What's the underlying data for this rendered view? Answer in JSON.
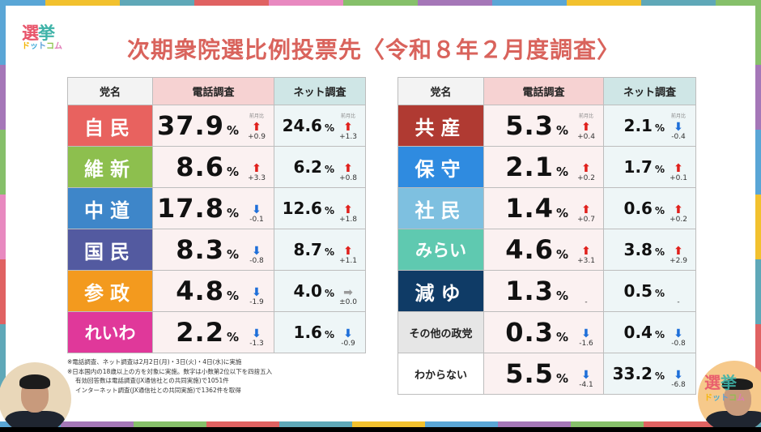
{
  "title": "次期衆院選比例投票先〈令和８年２月度調査〉",
  "logo": {
    "line1a": "選",
    "line1b": "挙",
    "line2": [
      "ド",
      "ッ",
      "ト",
      "コ",
      "ム"
    ]
  },
  "headers": {
    "party": "党名",
    "phone": "電話調査",
    "net": "ネット調査",
    "prev_label": "前月比"
  },
  "left_table": [
    {
      "party": "自民",
      "color": "#e8625f",
      "phone": "37.9",
      "phone_dir": "up",
      "phone_delta": "+0.9",
      "net": "24.6",
      "net_dir": "up",
      "net_delta": "+1.3",
      "show_prev": true
    },
    {
      "party": "維新",
      "color": "#8dbf4e",
      "phone": "8.6",
      "phone_dir": "up",
      "phone_delta": "+3.3",
      "net": "6.2",
      "net_dir": "up",
      "net_delta": "+0.8"
    },
    {
      "party": "中道",
      "color": "#3e86c9",
      "phone": "17.8",
      "phone_dir": "down",
      "phone_delta": "-0.1",
      "net": "12.6",
      "net_dir": "up",
      "net_delta": "+1.8"
    },
    {
      "party": "国民",
      "color": "#535aa0",
      "phone": "8.3",
      "phone_dir": "down",
      "phone_delta": "-0.8",
      "net": "8.7",
      "net_dir": "up",
      "net_delta": "+1.1"
    },
    {
      "party": "参政",
      "color": "#f39a1e",
      "phone": "4.8",
      "phone_dir": "down",
      "phone_delta": "-1.9",
      "net": "4.0",
      "net_dir": "flat",
      "net_delta": "±0.0"
    },
    {
      "party": "れいわ",
      "color": "#e0389a",
      "phone": "2.2",
      "phone_dir": "down",
      "phone_delta": "-1.3",
      "net": "1.6",
      "net_dir": "down",
      "net_delta": "-0.9"
    }
  ],
  "right_table": [
    {
      "party": "共産",
      "color": "#b03a32",
      "phone": "5.3",
      "phone_dir": "up",
      "phone_delta": "+0.4",
      "net": "2.1",
      "net_dir": "down",
      "net_delta": "-0.4",
      "show_prev": true
    },
    {
      "party": "保守",
      "color": "#2f8be0",
      "phone": "2.1",
      "phone_dir": "up",
      "phone_delta": "+0.2",
      "net": "1.7",
      "net_dir": "up",
      "net_delta": "+0.1"
    },
    {
      "party": "社民",
      "color": "#7ec0e0",
      "phone": "1.4",
      "phone_dir": "up",
      "phone_delta": "+0.7",
      "net": "0.6",
      "net_dir": "up",
      "net_delta": "+0.2"
    },
    {
      "party": "みらい",
      "color": "#5fc9b0",
      "phone": "4.6",
      "phone_dir": "up",
      "phone_delta": "+3.1",
      "net": "3.8",
      "net_dir": "up",
      "net_delta": "+2.9"
    },
    {
      "party": "減ゆ",
      "color": "#0f3b66",
      "phone": "1.3",
      "phone_dir": "none",
      "phone_delta": "-",
      "net": "0.5",
      "net_dir": "none",
      "net_delta": "-"
    },
    {
      "party": "その他の政党",
      "color": "#e6e6e6",
      "phone": "0.3",
      "phone_dir": "down",
      "phone_delta": "-1.6",
      "net": "0.4",
      "net_dir": "down",
      "net_delta": "-0.8",
      "dark_text": true
    },
    {
      "party": "わからない",
      "color": "#ffffff",
      "phone": "5.5",
      "phone_dir": "down",
      "phone_delta": "-4.1",
      "net": "33.2",
      "net_dir": "down",
      "net_delta": "-6.8",
      "dark_text": true
    }
  ],
  "notes": [
    "※電話調査、ネット調査は2月2日(月)・3日(火)・4日(水)に実施",
    "※日本国内の18歳以上の方を対象に実施。数字は小数第2位以下を四捨五入",
    "有効回答数は電話調査(JX通信社との共同実施)で1051件",
    "インターネット調査(JX通信社との共同実施)で1362件を取得"
  ],
  "colors": {
    "title": "#d9635c",
    "up": "#e0201c",
    "down": "#1e6fd9",
    "flat": "#9a9a9a"
  },
  "icons": {
    "up": "arrow-up-icon",
    "down": "arrow-down-icon",
    "flat": "arrow-right-icon"
  }
}
